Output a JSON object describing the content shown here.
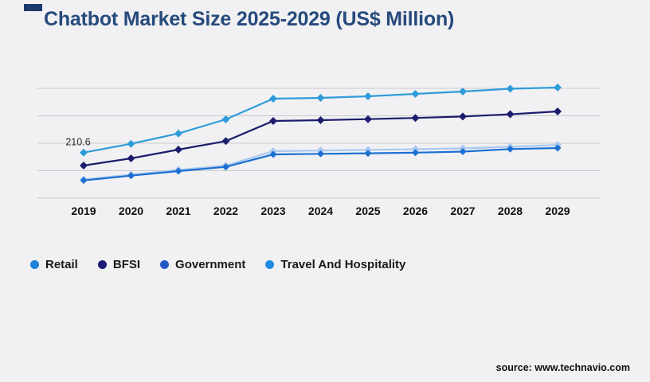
{
  "page": {
    "background": "#f1f1f3",
    "title": "Chatbot Market Size 2025-2029 (US$ Million)",
    "title_color": "#264a7c",
    "source": "source: www.technavio.com"
  },
  "chart_data": {
    "type": "line",
    "title": "Chatbot Market Size 2025-2029 (US$ Million)",
    "x": [
      2019,
      2020,
      2021,
      2022,
      2023,
      2024,
      2025,
      2026,
      2027,
      2028,
      2029
    ],
    "series": [
      {
        "name": "Retail",
        "color": "#2f9cda",
        "legend_color": "#1e82d6",
        "values": [
          210.6,
          251.0,
          298.8,
          363.8,
          459.4,
          463.0,
          470.4,
          481.4,
          492.5,
          505.3,
          510.8
        ]
      },
      {
        "name": "BFSI",
        "color": "#1d1d6e",
        "legend_color": "#1c1c78",
        "values": [
          150.7,
          183.8,
          224.2,
          263.5,
          356.5,
          360.2,
          364.9,
          370.4,
          377.1,
          387.5,
          400.6
        ]
      },
      {
        "name": "Government",
        "color": "#abc9f0",
        "legend_color": "#2457c4",
        "values": [
          86.4,
          108.4,
          130.5,
          150.6,
          216.8,
          220.1,
          223.0,
          226.1,
          230.0,
          237.2,
          245.9
        ]
      },
      {
        "name": "Travel And Hospitality",
        "color": "#1c6fd2",
        "legend_color": "#1e8ce0",
        "values": [
          82.0,
          104.0,
          125.1,
          144.3,
          202.1,
          204.7,
          207.4,
          210.3,
          214.9,
          226.8,
          231.5
        ]
      }
    ],
    "annotation": {
      "text": "210.6",
      "series": "Retail",
      "x": 2019
    },
    "marker": "diamond",
    "grid": "horizontal",
    "gridline_color": "#cbcbcf",
    "axis_label_color": "#111111",
    "ylim": [
      0,
      510
    ],
    "legend_position": "bottom-left",
    "xlabel": "",
    "ylabel": ""
  }
}
